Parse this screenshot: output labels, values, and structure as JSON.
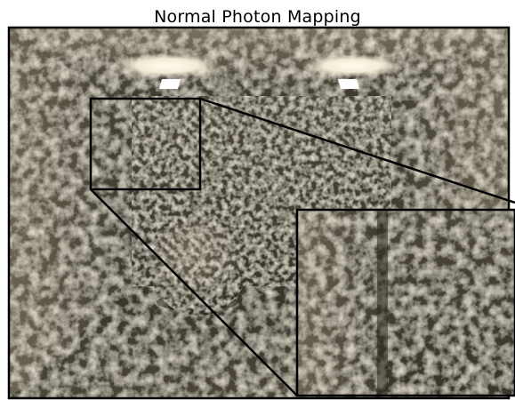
{
  "figure": {
    "title": "Normal Photon Mapping"
  },
  "colors": {
    "frame": "#000000",
    "background": "#ffffff",
    "wall_tone": "#8a806a",
    "light": "#fff8e6"
  }
}
